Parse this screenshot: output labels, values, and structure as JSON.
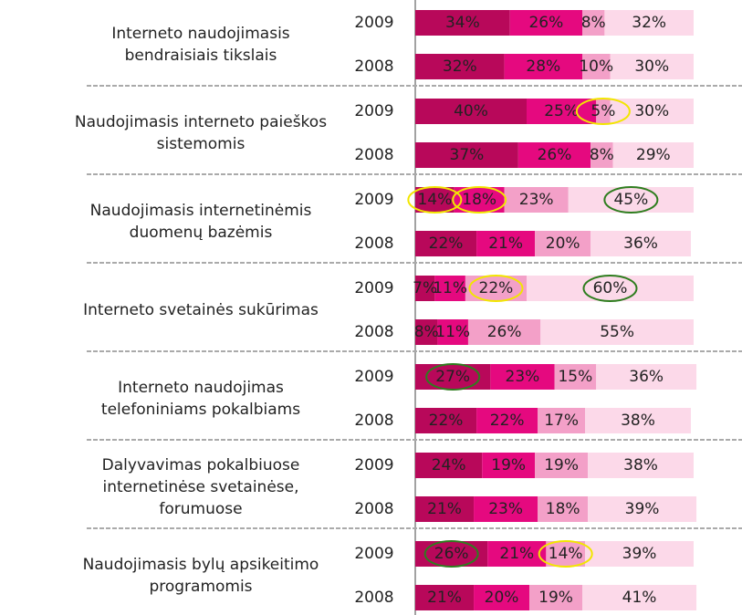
{
  "chart_data": {
    "type": "stacked_bar",
    "colors": [
      "#b8085a",
      "#e5097f",
      "#f3a0c8",
      "#fcd9e9"
    ],
    "groups": [
      {
        "label": [
          "Interneto naudojimasis",
          "bendraisiais tikslais"
        ],
        "rows": [
          {
            "year": "2009",
            "values": [
              34,
              26,
              8,
              32
            ],
            "value_labels": [
              "34%",
              "26%",
              "8%",
              "32%"
            ],
            "circles": [
              null,
              null,
              null,
              null
            ]
          },
          {
            "year": "2008",
            "values": [
              32,
              28,
              10,
              30
            ],
            "value_labels": [
              "32%",
              "28%",
              "10%",
              "30%"
            ],
            "circles": [
              null,
              null,
              null,
              null
            ]
          }
        ]
      },
      {
        "label": [
          "Naudojimasis interneto paieškos",
          "sistemomis"
        ],
        "rows": [
          {
            "year": "2009",
            "values": [
              40,
              25,
              5,
              30
            ],
            "value_labels": [
              "40%",
              "25%",
              "5%",
              "30%"
            ],
            "circles": [
              null,
              null,
              "#f2e600",
              null
            ]
          },
          {
            "year": "2008",
            "values": [
              37,
              26,
              8,
              29
            ],
            "value_labels": [
              "37%",
              "26%",
              "8%",
              "29%"
            ],
            "circles": [
              null,
              null,
              null,
              null
            ]
          }
        ]
      },
      {
        "label": [
          "Naudojimasis internetinėmis",
          "duomenų bazėmis"
        ],
        "rows": [
          {
            "year": "2009",
            "values": [
              14,
              18,
              23,
              45
            ],
            "value_labels": [
              "14%",
              "18%",
              "23%",
              "45%"
            ],
            "circles": [
              "#f2e600",
              "#f2e600",
              null,
              "#2e7d1e"
            ]
          },
          {
            "year": "2008",
            "values": [
              22,
              21,
              20,
              36
            ],
            "value_labels": [
              "22%",
              "21%",
              "20%",
              "36%"
            ],
            "circles": [
              null,
              null,
              null,
              null
            ]
          }
        ]
      },
      {
        "label": [
          "Interneto svetainės sukūrimas"
        ],
        "rows": [
          {
            "year": "2009",
            "values": [
              7,
              11,
              22,
              60
            ],
            "value_labels": [
              "7%",
              "11%",
              "22%",
              "60%"
            ],
            "circles": [
              null,
              null,
              "#f2e600",
              "#2e7d1e"
            ]
          },
          {
            "year": "2008",
            "values": [
              8,
              11,
              26,
              55
            ],
            "value_labels": [
              "8%",
              "11%",
              "26%",
              "55%"
            ],
            "circles": [
              null,
              null,
              null,
              null
            ]
          }
        ]
      },
      {
        "label": [
          "Interneto naudojimas",
          "telefoniniams pokalbiams"
        ],
        "rows": [
          {
            "year": "2009",
            "values": [
              27,
              23,
              15,
              36
            ],
            "value_labels": [
              "27%",
              "23%",
              "15%",
              "36%"
            ],
            "circles": [
              "#2e7d1e",
              null,
              null,
              null
            ]
          },
          {
            "year": "2008",
            "values": [
              22,
              22,
              17,
              38
            ],
            "value_labels": [
              "22%",
              "22%",
              "17%",
              "38%"
            ],
            "circles": [
              null,
              null,
              null,
              null
            ]
          }
        ]
      },
      {
        "label": [
          "Dalyvavimas pokalbiuose",
          "internetinėse svetainėse,",
          "forumuose"
        ],
        "rows": [
          {
            "year": "2009",
            "values": [
              24,
              19,
              19,
              38
            ],
            "value_labels": [
              "24%",
              "19%",
              "19%",
              "38%"
            ],
            "circles": [
              null,
              null,
              null,
              null
            ]
          },
          {
            "year": "2008",
            "values": [
              21,
              23,
              18,
              39
            ],
            "value_labels": [
              "21%",
              "23%",
              "18%",
              "39%"
            ],
            "circles": [
              null,
              null,
              null,
              null
            ]
          }
        ]
      },
      {
        "label": [
          "Naudojimasis bylų apsikeitimo",
          "programomis"
        ],
        "rows": [
          {
            "year": "2009",
            "values": [
              26,
              21,
              14,
              39
            ],
            "value_labels": [
              "26%",
              "21%",
              "14%",
              "39%"
            ],
            "circles": [
              "#2e7d1e",
              null,
              "#f2e600",
              null
            ]
          },
          {
            "year": "2008",
            "values": [
              21,
              20,
              19,
              41
            ],
            "value_labels": [
              "21%",
              "20%",
              "19%",
              "41%"
            ],
            "circles": [
              null,
              null,
              null,
              null
            ]
          }
        ]
      }
    ]
  }
}
